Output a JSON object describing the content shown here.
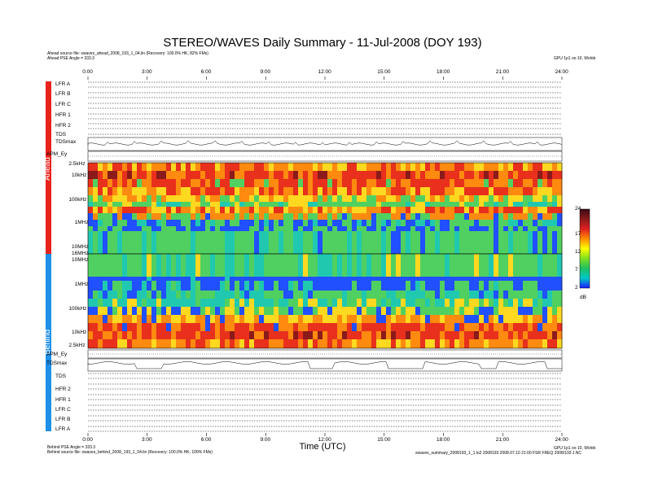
{
  "header": {
    "title": "STEREO/WAVES Daily Summary - 11-Jul-2008 (DOY 193)",
    "ahead_source": "Ahead source file: swaves_ahead_2008_193_1_04.lin (Recovery: 100.0% HK, 82% FMs)",
    "ahead_angle": "Ahead PSE Angle = 333.3",
    "right_note": "GPU 1p1 oo 10, Wolob"
  },
  "footer": {
    "behind_angle": "Behind PSE Angle = 333.3",
    "behind_source": "Behind source file: swaves_behind_2008_193_1_04.lin (Recovery: 100.0% HK, 100% FMs)",
    "right_note": "GPU 1p1 oo 10, Wolob",
    "ident": "swaves_summary_2008193_1_1.lo2 2008193 2008.07.10 21:00 FSR FREQ 2008/193 J.NC"
  },
  "sidebar": {
    "ahead_label": "Ahead",
    "behind_label": "Behind",
    "ahead_color": "#e8231c",
    "behind_color": "#1e90e8"
  },
  "panels": {
    "ahead_top": [
      "LFR A",
      "LFR B",
      "LFR C",
      "HFR 1",
      "HFR 2",
      "TDS",
      "TDSmax"
    ],
    "ahead_apm": "APM_Ey",
    "behind_apm": "APM_Ey",
    "behind_tdsmax": "TDSmax",
    "behind_bottom": [
      "TDS",
      "HFR 2",
      "HFR 1",
      "LFR C",
      "LFR B",
      "LFR A"
    ]
  },
  "chart_data": {
    "type": "heatmap",
    "title": "STEREO/WAVES Daily Summary - 11-Jul-2008 (DOY 193)",
    "xlabel": "Time (UTC)",
    "x_ticks": [
      "0:00",
      "3:00",
      "6:00",
      "9:00",
      "12:00",
      "15:00",
      "18:00",
      "21:00",
      "24:00"
    ],
    "xlim": [
      "0:00",
      "24:00"
    ],
    "ahead_freq_ticks": [
      "2.5kHz",
      "10kHz",
      "100kHz",
      "1MHz",
      "10MHz",
      "16MHz"
    ],
    "behind_freq_ticks": [
      "10MHz",
      "1MHz",
      "100kHz",
      "10kHz",
      "2.5kHz"
    ],
    "colorbar": {
      "ticks": [
        24,
        17,
        12,
        7,
        2
      ],
      "unit": "dB",
      "range": [
        2,
        24
      ],
      "colors": [
        "#3a0a14",
        "#8b1a1a",
        "#e02020",
        "#ff8c00",
        "#ffff00",
        "#80e020",
        "#20c060",
        "#00c8c8",
        "#1a1aff"
      ]
    },
    "spectrogram_colors": {
      "ahead_low": "#e84a10",
      "ahead_mid": "#2050ff",
      "ahead_high": "#50d060",
      "behind_low": "#e84a10",
      "behind_mid": "#2050ff",
      "behind_high": "#50d060"
    }
  }
}
